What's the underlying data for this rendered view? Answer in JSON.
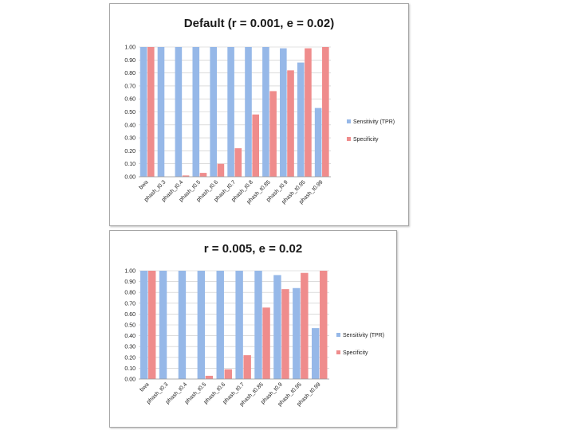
{
  "colors": {
    "sensitivity": "#96b8e8",
    "specificity": "#ef8c8c",
    "grid": "#c8c8c8"
  },
  "chart_data": [
    {
      "type": "bar",
      "title": "Default (r = 0.001, e = 0.02)",
      "xlabel": "",
      "ylabel": "",
      "ylim": [
        0,
        1
      ],
      "yticks": [
        "0.00",
        "0.10",
        "0.20",
        "0.30",
        "0.40",
        "0.50",
        "0.60",
        "0.70",
        "0.80",
        "0.90",
        "1.00"
      ],
      "grid": true,
      "legend_position": "right",
      "categories": [
        "bwa",
        "phash_t0.3",
        "phash_t0.4",
        "phash_t0.5",
        "phash_t0.6",
        "phash_t0.7",
        "phash_t0.8",
        "phash_t0.85",
        "phash_t0.9",
        "phash_t0.95",
        "phash_t0.99"
      ],
      "series": [
        {
          "name": "Sensitivity (TPR)",
          "values": [
            1.0,
            1.0,
            1.0,
            1.0,
            1.0,
            1.0,
            1.0,
            1.0,
            0.99,
            0.88,
            0.53
          ]
        },
        {
          "name": "Specificity",
          "values": [
            1.0,
            0.0,
            0.01,
            0.03,
            0.1,
            0.22,
            0.48,
            0.66,
            0.82,
            0.99,
            1.0
          ]
        }
      ]
    },
    {
      "type": "bar",
      "title": "r = 0.005, e = 0.02",
      "xlabel": "",
      "ylabel": "",
      "ylim": [
        0,
        1
      ],
      "yticks": [
        "0.00",
        "0.10",
        "0.20",
        "0.30",
        "0.40",
        "0.50",
        "0.60",
        "0.70",
        "0.80",
        "0.90",
        "1.00"
      ],
      "grid": true,
      "legend_position": "right",
      "categories": [
        "bwa",
        "phash_t0.3",
        "phash_t0.4",
        "phash_t0.5",
        "phash_t0.6",
        "phash_t0.7",
        "phash_t0.85",
        "phash_t0.9",
        "phash_t0.95",
        "phash_t0.99"
      ],
      "series": [
        {
          "name": "Sensitivity (TPR)",
          "values": [
            1.0,
            1.0,
            1.0,
            1.0,
            1.0,
            1.0,
            1.0,
            0.96,
            0.84,
            0.47
          ]
        },
        {
          "name": "Specificity",
          "values": [
            1.0,
            0.0,
            0.0,
            0.03,
            0.09,
            0.22,
            0.66,
            0.83,
            0.98,
            1.0
          ]
        }
      ]
    }
  ]
}
